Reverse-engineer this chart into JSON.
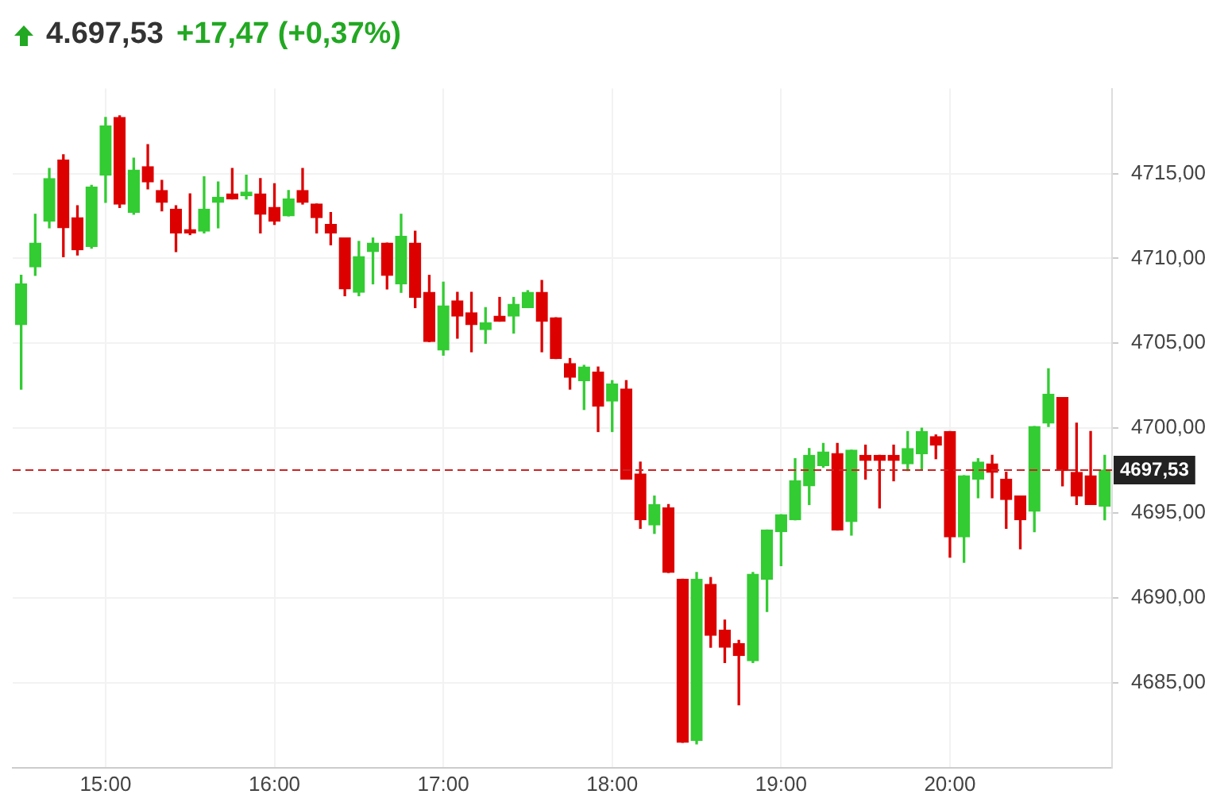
{
  "chart_data": {
    "type": "candlestick",
    "title": "4.697,53",
    "subtitle": "+17,47 (+0,37%)",
    "x": [
      14.5,
      14.5833,
      14.6667,
      14.75,
      14.8333,
      14.9167,
      15,
      15.0833,
      15.1667,
      15.25,
      15.3333,
      15.4167,
      15.5,
      15.5833,
      15.6667,
      15.75,
      15.8333,
      15.9167,
      16,
      16.0833,
      16.1667,
      16.25,
      16.3333,
      16.4167,
      16.5,
      16.5833,
      16.6667,
      16.75,
      16.8333,
      16.9167,
      17,
      17.0833,
      17.1667,
      17.25,
      17.3333,
      17.4167,
      17.5,
      17.5833,
      17.6667,
      17.75,
      17.8333,
      17.9167,
      18,
      18.0833,
      18.1667,
      18.25,
      18.3333,
      18.4167,
      18.5,
      18.5833,
      18.6667,
      18.75,
      18.8333,
      18.9167,
      19,
      19.0833,
      19.1667,
      19.25,
      19.3333,
      19.4167,
      19.5,
      19.5833,
      19.6667,
      19.75,
      19.8333,
      19.9167,
      20,
      20.0833,
      20.1667,
      20.25,
      20.3333,
      20.4167,
      20.5,
      20.5833,
      20.6667,
      20.75,
      20.8333,
      20.9167
    ],
    "ohlc": [
      [
        4706.1,
        4709.0,
        4702.3,
        4708.5
      ],
      [
        4709.5,
        4712.6,
        4709.0,
        4710.9
      ],
      [
        4712.2,
        4715.3,
        4711.8,
        4714.7
      ],
      [
        4715.8,
        4716.1,
        4710.1,
        4711.8
      ],
      [
        4712.4,
        4713.1,
        4710.2,
        4710.5
      ],
      [
        4710.7,
        4714.3,
        4710.6,
        4714.2
      ],
      [
        4714.9,
        4718.3,
        4713.3,
        4717.8
      ],
      [
        4718.3,
        4718.4,
        4713.0,
        4713.2
      ],
      [
        4712.7,
        4715.9,
        4712.6,
        4715.2
      ],
      [
        4715.4,
        4716.7,
        4714.1,
        4714.5
      ],
      [
        4714.0,
        4714.6,
        4712.8,
        4713.3
      ],
      [
        4712.9,
        4713.1,
        4710.4,
        4711.5
      ],
      [
        4711.7,
        4713.8,
        4711.4,
        4711.5
      ],
      [
        4711.6,
        4714.8,
        4711.5,
        4712.9
      ],
      [
        4713.3,
        4714.5,
        4711.8,
        4713.6
      ],
      [
        4713.8,
        4715.3,
        4713.5,
        4713.5
      ],
      [
        4713.7,
        4714.9,
        4713.5,
        4713.9
      ],
      [
        4713.8,
        4714.7,
        4711.5,
        4712.6
      ],
      [
        4713.0,
        4714.4,
        4712.0,
        4712.2
      ],
      [
        4712.5,
        4714.0,
        4712.5,
        4713.5
      ],
      [
        4714.0,
        4715.3,
        4713.2,
        4713.3
      ],
      [
        4713.2,
        4713.2,
        4711.5,
        4712.4
      ],
      [
        4712.0,
        4712.7,
        4710.8,
        4711.5
      ],
      [
        4711.2,
        4711.2,
        4707.8,
        4708.2
      ],
      [
        4708.0,
        4711.0,
        4707.8,
        4710.1
      ],
      [
        4710.4,
        4711.2,
        4708.5,
        4710.9
      ],
      [
        4710.9,
        4710.9,
        4708.2,
        4709.0
      ],
      [
        4708.5,
        4712.6,
        4708.0,
        4711.3
      ],
      [
        4710.9,
        4711.6,
        4707.1,
        4707.7
      ],
      [
        4708.0,
        4709.0,
        4705.1,
        4705.1
      ],
      [
        4704.6,
        4708.6,
        4704.3,
        4707.2
      ],
      [
        4707.5,
        4708.0,
        4705.3,
        4706.6
      ],
      [
        4706.8,
        4708.0,
        4704.5,
        4706.1
      ],
      [
        4705.8,
        4707.1,
        4705.0,
        4706.2
      ],
      [
        4706.6,
        4707.7,
        4706.3,
        4706.3
      ],
      [
        4706.6,
        4707.7,
        4705.6,
        4707.3
      ],
      [
        4707.1,
        4708.1,
        4707.1,
        4708.0
      ],
      [
        4708.0,
        4708.7,
        4704.5,
        4706.3
      ],
      [
        4706.5,
        4706.5,
        4704.1,
        4704.1
      ],
      [
        4703.8,
        4704.1,
        4702.3,
        4703.0
      ],
      [
        4702.8,
        4703.7,
        4701.1,
        4703.6
      ],
      [
        4703.3,
        4703.6,
        4699.8,
        4701.3
      ],
      [
        4701.6,
        4702.8,
        4699.8,
        4702.6
      ],
      [
        4702.3,
        4702.8,
        4697.0,
        4697.0
      ],
      [
        4697.3,
        4698.0,
        4694.1,
        4694.6
      ],
      [
        4694.3,
        4696.0,
        4693.8,
        4695.5
      ],
      [
        4695.3,
        4695.5,
        4691.5,
        4691.5
      ],
      [
        4691.1,
        4691.1,
        4681.5,
        4681.5
      ],
      [
        4681.6,
        4691.5,
        4681.4,
        4691.1
      ],
      [
        4690.8,
        4691.2,
        4687.1,
        4687.8
      ],
      [
        4688.1,
        4688.7,
        4686.2,
        4687.1
      ],
      [
        4687.3,
        4687.5,
        4683.7,
        4686.6
      ],
      [
        4686.3,
        4691.5,
        4686.2,
        4691.4
      ],
      [
        4691.1,
        4694.0,
        4689.2,
        4694.0
      ],
      [
        4693.9,
        4694.9,
        4691.9,
        4694.9
      ],
      [
        4694.6,
        4698.2,
        4694.6,
        4696.9
      ],
      [
        4696.6,
        4698.8,
        4695.5,
        4698.4
      ],
      [
        4697.8,
        4699.1,
        4697.7,
        4698.6
      ],
      [
        4698.5,
        4699.1,
        4694.0,
        4694.0
      ],
      [
        4694.5,
        4698.7,
        4693.7,
        4698.7
      ],
      [
        4698.4,
        4699.0,
        4697.0,
        4698.1
      ],
      [
        4698.4,
        4698.4,
        4695.3,
        4698.1
      ],
      [
        4698.4,
        4699.0,
        4696.9,
        4698.1
      ],
      [
        4697.9,
        4699.8,
        4697.5,
        4698.8
      ],
      [
        4698.5,
        4700.0,
        4697.6,
        4699.8
      ],
      [
        4699.5,
        4699.6,
        4698.2,
        4699.0
      ],
      [
        4699.8,
        4699.8,
        4692.4,
        4693.6
      ],
      [
        4693.6,
        4697.2,
        4692.1,
        4697.2
      ],
      [
        4697.0,
        4698.2,
        4695.9,
        4698.0
      ],
      [
        4697.9,
        4698.4,
        4695.9,
        4697.4
      ],
      [
        4697.0,
        4697.4,
        4694.1,
        4695.8
      ],
      [
        4696.0,
        4696.0,
        4692.9,
        4694.6
      ],
      [
        4695.1,
        4700.1,
        4693.9,
        4700.1
      ],
      [
        4700.3,
        4703.5,
        4700.1,
        4702.0
      ],
      [
        4701.8,
        4701.8,
        4696.6,
        4697.5
      ],
      [
        4697.4,
        4700.3,
        4695.5,
        4696.0
      ],
      [
        4697.2,
        4699.8,
        4695.5,
        4695.5
      ],
      [
        4695.4,
        4698.4,
        4694.6,
        4697.53
      ]
    ],
    "colors": [
      "#33cc33",
      "#33cc33",
      "#33cc33",
      "#dd0000",
      "#dd0000",
      "#33cc33",
      "#33cc33",
      "#dd0000",
      "#33cc33",
      "#dd0000",
      "#dd0000",
      "#dd0000",
      "#dd0000",
      "#33cc33",
      "#33cc33",
      "#dd0000",
      "#33cc33",
      "#dd0000",
      "#dd0000",
      "#33cc33",
      "#dd0000",
      "#dd0000",
      "#dd0000",
      "#dd0000",
      "#33cc33",
      "#33cc33",
      "#dd0000",
      "#33cc33",
      "#dd0000",
      "#dd0000",
      "#33cc33",
      "#dd0000",
      "#dd0000",
      "#33cc33",
      "#dd0000",
      "#33cc33",
      "#33cc33",
      "#dd0000",
      "#dd0000",
      "#dd0000",
      "#33cc33",
      "#dd0000",
      "#33cc33",
      "#dd0000",
      "#dd0000",
      "#33cc33",
      "#dd0000",
      "#dd0000",
      "#33cc33",
      "#dd0000",
      "#dd0000",
      "#dd0000",
      "#33cc33",
      "#33cc33",
      "#33cc33",
      "#33cc33",
      "#33cc33",
      "#33cc33",
      "#dd0000",
      "#33cc33",
      "#dd0000",
      "#dd0000",
      "#dd0000",
      "#33cc33",
      "#33cc33",
      "#dd0000",
      "#dd0000",
      "#33cc33",
      "#33cc33",
      "#dd0000",
      "#dd0000",
      "#dd0000",
      "#33cc33",
      "#33cc33",
      "#dd0000",
      "#dd0000",
      "#dd0000",
      "#33cc33"
    ],
    "xlim": [
      14.45,
      20.96
    ],
    "xticks": [
      {
        "value": 15,
        "label": "15:00"
      },
      {
        "value": 16,
        "label": "16:00"
      },
      {
        "value": 17,
        "label": "17:00"
      },
      {
        "value": 18,
        "label": "18:00"
      },
      {
        "value": 19,
        "label": "19:00"
      },
      {
        "value": 20,
        "label": "20:00"
      }
    ],
    "ylim": [
      4680,
      4720
    ],
    "yticks": [
      {
        "value": 4685,
        "label": "4685,00"
      },
      {
        "value": 4690,
        "label": "4690,00"
      },
      {
        "value": 4695,
        "label": "4695,00"
      },
      {
        "value": 4700,
        "label": "4700,00"
      },
      {
        "value": 4705,
        "label": "4705,00"
      },
      {
        "value": 4710,
        "label": "4710,00"
      },
      {
        "value": 4715,
        "label": "4715,00"
      }
    ],
    "ref_lines": [
      {
        "axis": "y",
        "value": 4697.53,
        "label": "4697,53",
        "color": "#cc2222",
        "line_style": "dashed"
      }
    ],
    "grid": true,
    "legend": false
  }
}
